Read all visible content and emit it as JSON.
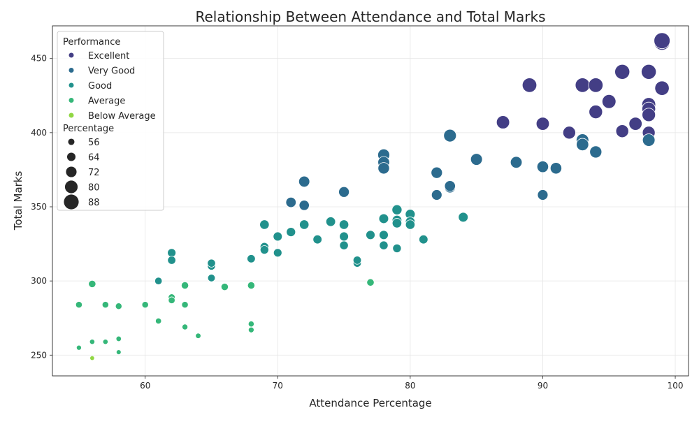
{
  "chart_data": {
    "type": "scatter",
    "title": "Relationship Between Attendance and Total Marks",
    "xlabel": "Attendance Percentage",
    "ylabel": "Total Marks",
    "xlim": [
      53,
      101
    ],
    "ylim": [
      236,
      472
    ],
    "x_ticks": [
      60,
      70,
      80,
      90,
      100
    ],
    "y_ticks": [
      250,
      300,
      350,
      400,
      450
    ],
    "grid": true,
    "legend": {
      "position": "top-left",
      "hue_title": "Performance",
      "size_title": "Percentage",
      "hue_entries": [
        {
          "label": "Excellent",
          "color": "#433e85"
        },
        {
          "label": "Very Good",
          "color": "#2c6b8e"
        },
        {
          "label": "Good",
          "color": "#21918c"
        },
        {
          "label": "Average",
          "color": "#35b779"
        },
        {
          "label": "Below Average",
          "color": "#90d743"
        }
      ],
      "size_entries": [
        {
          "label": "56",
          "value": 56
        },
        {
          "label": "64",
          "value": 64
        },
        {
          "label": "72",
          "value": 72
        },
        {
          "label": "80",
          "value": 80
        },
        {
          "label": "88",
          "value": 88
        }
      ]
    },
    "series": [
      {
        "name": "Excellent",
        "color": "#433e85",
        "points": [
          [
            99,
            461
          ],
          [
            99,
            462
          ],
          [
            96,
            441
          ],
          [
            98,
            441
          ],
          [
            89,
            432
          ],
          [
            93,
            432
          ],
          [
            94,
            432
          ],
          [
            99,
            430
          ],
          [
            95,
            421
          ],
          [
            98,
            419
          ],
          [
            98,
            416
          ],
          [
            94,
            414
          ],
          [
            98,
            412
          ],
          [
            87,
            407
          ],
          [
            90,
            406
          ],
          [
            97,
            406
          ],
          [
            92,
            400
          ],
          [
            96,
            401
          ],
          [
            98,
            400
          ]
        ]
      },
      {
        "name": "Very Good",
        "color": "#2c6b8e",
        "points": [
          [
            83,
            398
          ],
          [
            93,
            395
          ],
          [
            98,
            395
          ],
          [
            93,
            392
          ],
          [
            94,
            387
          ],
          [
            78,
            385
          ],
          [
            78,
            380
          ],
          [
            85,
            382
          ],
          [
            88,
            380
          ],
          [
            90,
            377
          ],
          [
            91,
            376
          ],
          [
            78,
            376
          ],
          [
            82,
            373
          ],
          [
            72,
            367
          ],
          [
            83,
            363
          ],
          [
            83,
            364
          ],
          [
            75,
            360
          ],
          [
            82,
            358
          ],
          [
            90,
            358
          ],
          [
            71,
            353
          ],
          [
            72,
            351
          ]
        ]
      },
      {
        "name": "Good",
        "color": "#21918c",
        "points": [
          [
            79,
            348
          ],
          [
            80,
            345
          ],
          [
            84,
            343
          ],
          [
            78,
            342
          ],
          [
            79,
            341
          ],
          [
            80,
            340
          ],
          [
            74,
            340
          ],
          [
            69,
            338
          ],
          [
            72,
            338
          ],
          [
            75,
            338
          ],
          [
            79,
            339
          ],
          [
            80,
            338
          ],
          [
            71,
            333
          ],
          [
            70,
            330
          ],
          [
            75,
            330
          ],
          [
            77,
            331
          ],
          [
            78,
            331
          ],
          [
            73,
            328
          ],
          [
            81,
            328
          ],
          [
            69,
            323
          ],
          [
            69,
            321
          ],
          [
            75,
            324
          ],
          [
            78,
            324
          ],
          [
            79,
            322
          ],
          [
            70,
            319
          ],
          [
            62,
            319
          ],
          [
            68,
            315
          ],
          [
            62,
            314
          ],
          [
            76,
            312
          ],
          [
            76,
            314
          ],
          [
            65,
            310
          ],
          [
            65,
            312
          ],
          [
            65,
            302
          ],
          [
            61,
            300
          ]
        ]
      },
      {
        "name": "Average",
        "color": "#35b779",
        "points": [
          [
            77,
            299
          ],
          [
            56,
            298
          ],
          [
            63,
            297
          ],
          [
            66,
            296
          ],
          [
            68,
            297
          ],
          [
            62,
            289
          ],
          [
            62,
            287
          ],
          [
            55,
            284
          ],
          [
            57,
            284
          ],
          [
            58,
            283
          ],
          [
            60,
            284
          ],
          [
            63,
            284
          ],
          [
            61,
            273
          ],
          [
            68,
            271
          ],
          [
            63,
            269
          ],
          [
            68,
            267
          ],
          [
            64,
            263
          ],
          [
            56,
            259
          ],
          [
            57,
            259
          ],
          [
            58,
            261
          ],
          [
            55,
            255
          ],
          [
            58,
            252
          ]
        ]
      },
      {
        "name": "Below Average",
        "color": "#90d743",
        "points": [
          [
            56,
            248
          ]
        ]
      }
    ]
  }
}
